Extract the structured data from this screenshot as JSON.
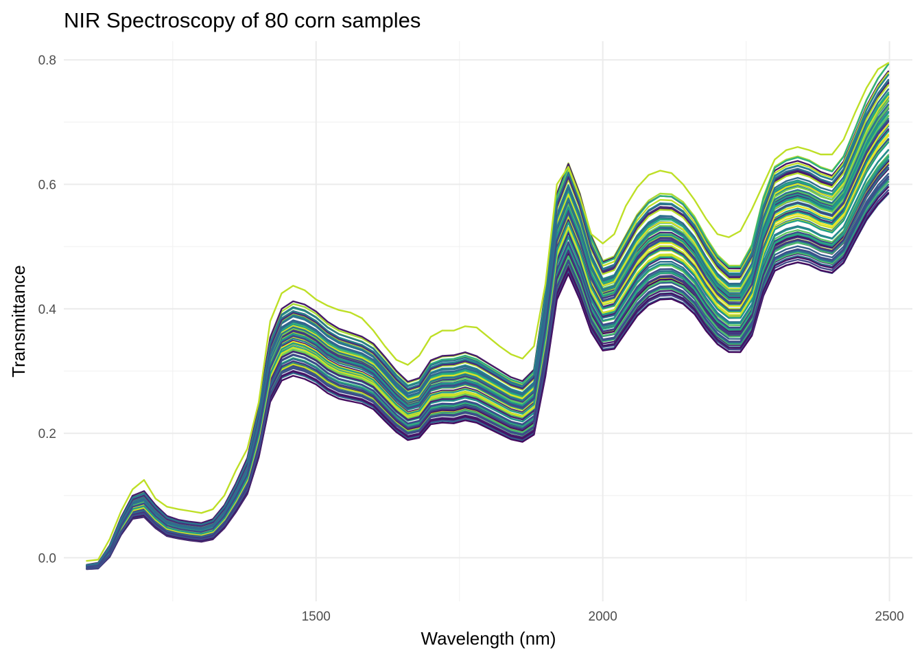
{
  "chart_data": {
    "type": "line",
    "title": "NIR Spectroscopy of 80 corn samples",
    "xlabel": "Wavelength (nm)",
    "ylabel": "Transmittance",
    "xlim": [
      1060,
      2540
    ],
    "ylim": [
      -0.07,
      0.83
    ],
    "x_ticks": [
      1500,
      2000,
      2500
    ],
    "x_minor_ticks": [
      1250,
      1750,
      2250
    ],
    "y_ticks": [
      0.0,
      0.2,
      0.4,
      0.6,
      0.8
    ],
    "y_tick_labels": [
      "0.0",
      "0.2",
      "0.4",
      "0.6",
      "0.8"
    ],
    "y_minor_ticks": [
      0.1,
      0.3,
      0.5,
      0.7
    ],
    "grid": true,
    "legend": "none",
    "series_count": 80,
    "palette": "viridis",
    "x": [
      1100,
      1120,
      1140,
      1160,
      1180,
      1200,
      1220,
      1240,
      1260,
      1280,
      1300,
      1320,
      1340,
      1360,
      1380,
      1400,
      1420,
      1440,
      1460,
      1480,
      1500,
      1520,
      1540,
      1560,
      1580,
      1600,
      1620,
      1640,
      1660,
      1680,
      1700,
      1720,
      1740,
      1760,
      1780,
      1800,
      1820,
      1840,
      1860,
      1880,
      1900,
      1920,
      1940,
      1960,
      1980,
      2000,
      2020,
      2040,
      2060,
      2080,
      2100,
      2120,
      2140,
      2160,
      2180,
      2200,
      2220,
      2240,
      2260,
      2280,
      2300,
      2320,
      2340,
      2360,
      2380,
      2400,
      2420,
      2440,
      2460,
      2480,
      2498
    ],
    "series_mean": [
      -0.015,
      -0.013,
      0.01,
      0.05,
      0.08,
      0.085,
      0.065,
      0.05,
      0.045,
      0.042,
      0.04,
      0.045,
      0.065,
      0.095,
      0.13,
      0.2,
      0.3,
      0.34,
      0.35,
      0.345,
      0.335,
      0.32,
      0.31,
      0.305,
      0.3,
      0.29,
      0.27,
      0.25,
      0.235,
      0.24,
      0.265,
      0.27,
      0.27,
      0.275,
      0.27,
      0.26,
      0.25,
      0.24,
      0.235,
      0.25,
      0.36,
      0.5,
      0.545,
      0.5,
      0.44,
      0.405,
      0.41,
      0.44,
      0.47,
      0.49,
      0.5,
      0.5,
      0.49,
      0.47,
      0.44,
      0.415,
      0.4,
      0.4,
      0.43,
      0.5,
      0.545,
      0.555,
      0.56,
      0.555,
      0.545,
      0.54,
      0.56,
      0.6,
      0.64,
      0.67,
      0.69
    ],
    "series_spread": [
      0.003,
      0.004,
      0.008,
      0.012,
      0.016,
      0.018,
      0.016,
      0.014,
      0.013,
      0.013,
      0.013,
      0.014,
      0.016,
      0.02,
      0.025,
      0.035,
      0.045,
      0.05,
      0.052,
      0.052,
      0.051,
      0.05,
      0.049,
      0.048,
      0.047,
      0.046,
      0.045,
      0.043,
      0.041,
      0.042,
      0.045,
      0.047,
      0.048,
      0.048,
      0.047,
      0.046,
      0.045,
      0.044,
      0.043,
      0.046,
      0.06,
      0.075,
      0.078,
      0.075,
      0.068,
      0.063,
      0.065,
      0.068,
      0.071,
      0.073,
      0.074,
      0.073,
      0.071,
      0.068,
      0.065,
      0.062,
      0.06,
      0.06,
      0.063,
      0.068,
      0.072,
      0.073,
      0.073,
      0.072,
      0.071,
      0.07,
      0.073,
      0.077,
      0.082,
      0.086,
      0.088
    ]
  }
}
